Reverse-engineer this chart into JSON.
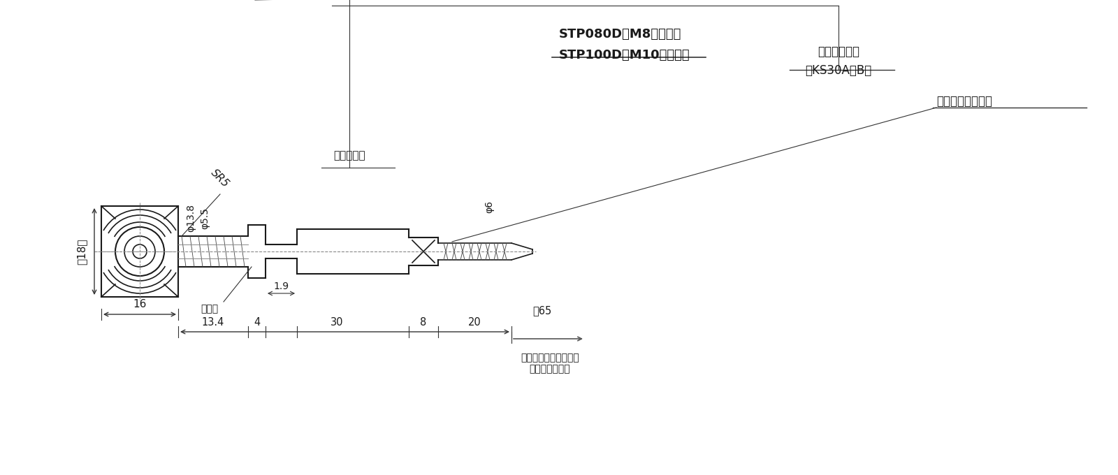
{
  "bg_color": "#ffffff",
  "line_color": "#1a1a1a",
  "dim_color": "#555555",
  "text_color": "#1a1a1a",
  "title_line1": "STP080D：M8（並目）",
  "title_line2": "STP100D：M10（並目）",
  "label_cartridge": "カートリッジ\n（KS30A／B）",
  "label_boot": "ブーツ保護",
  "label_cord": "コードプロテクタ",
  "label_sukima": "スキマ",
  "label_sr5": "SR5",
  "label_phi138": "φ13.8",
  "label_phi55": "φ5.5",
  "label_phi6": "φ6",
  "label_18": "（18）",
  "label_16": "16",
  "label_134": "13.4",
  "label_4": "4",
  "label_19": "1.9",
  "label_30": "30",
  "label_8": "8",
  "label_20": "20",
  "label_yaku65": "約65",
  "label_space": "カートリッジ取外しに\n要するスペース"
}
